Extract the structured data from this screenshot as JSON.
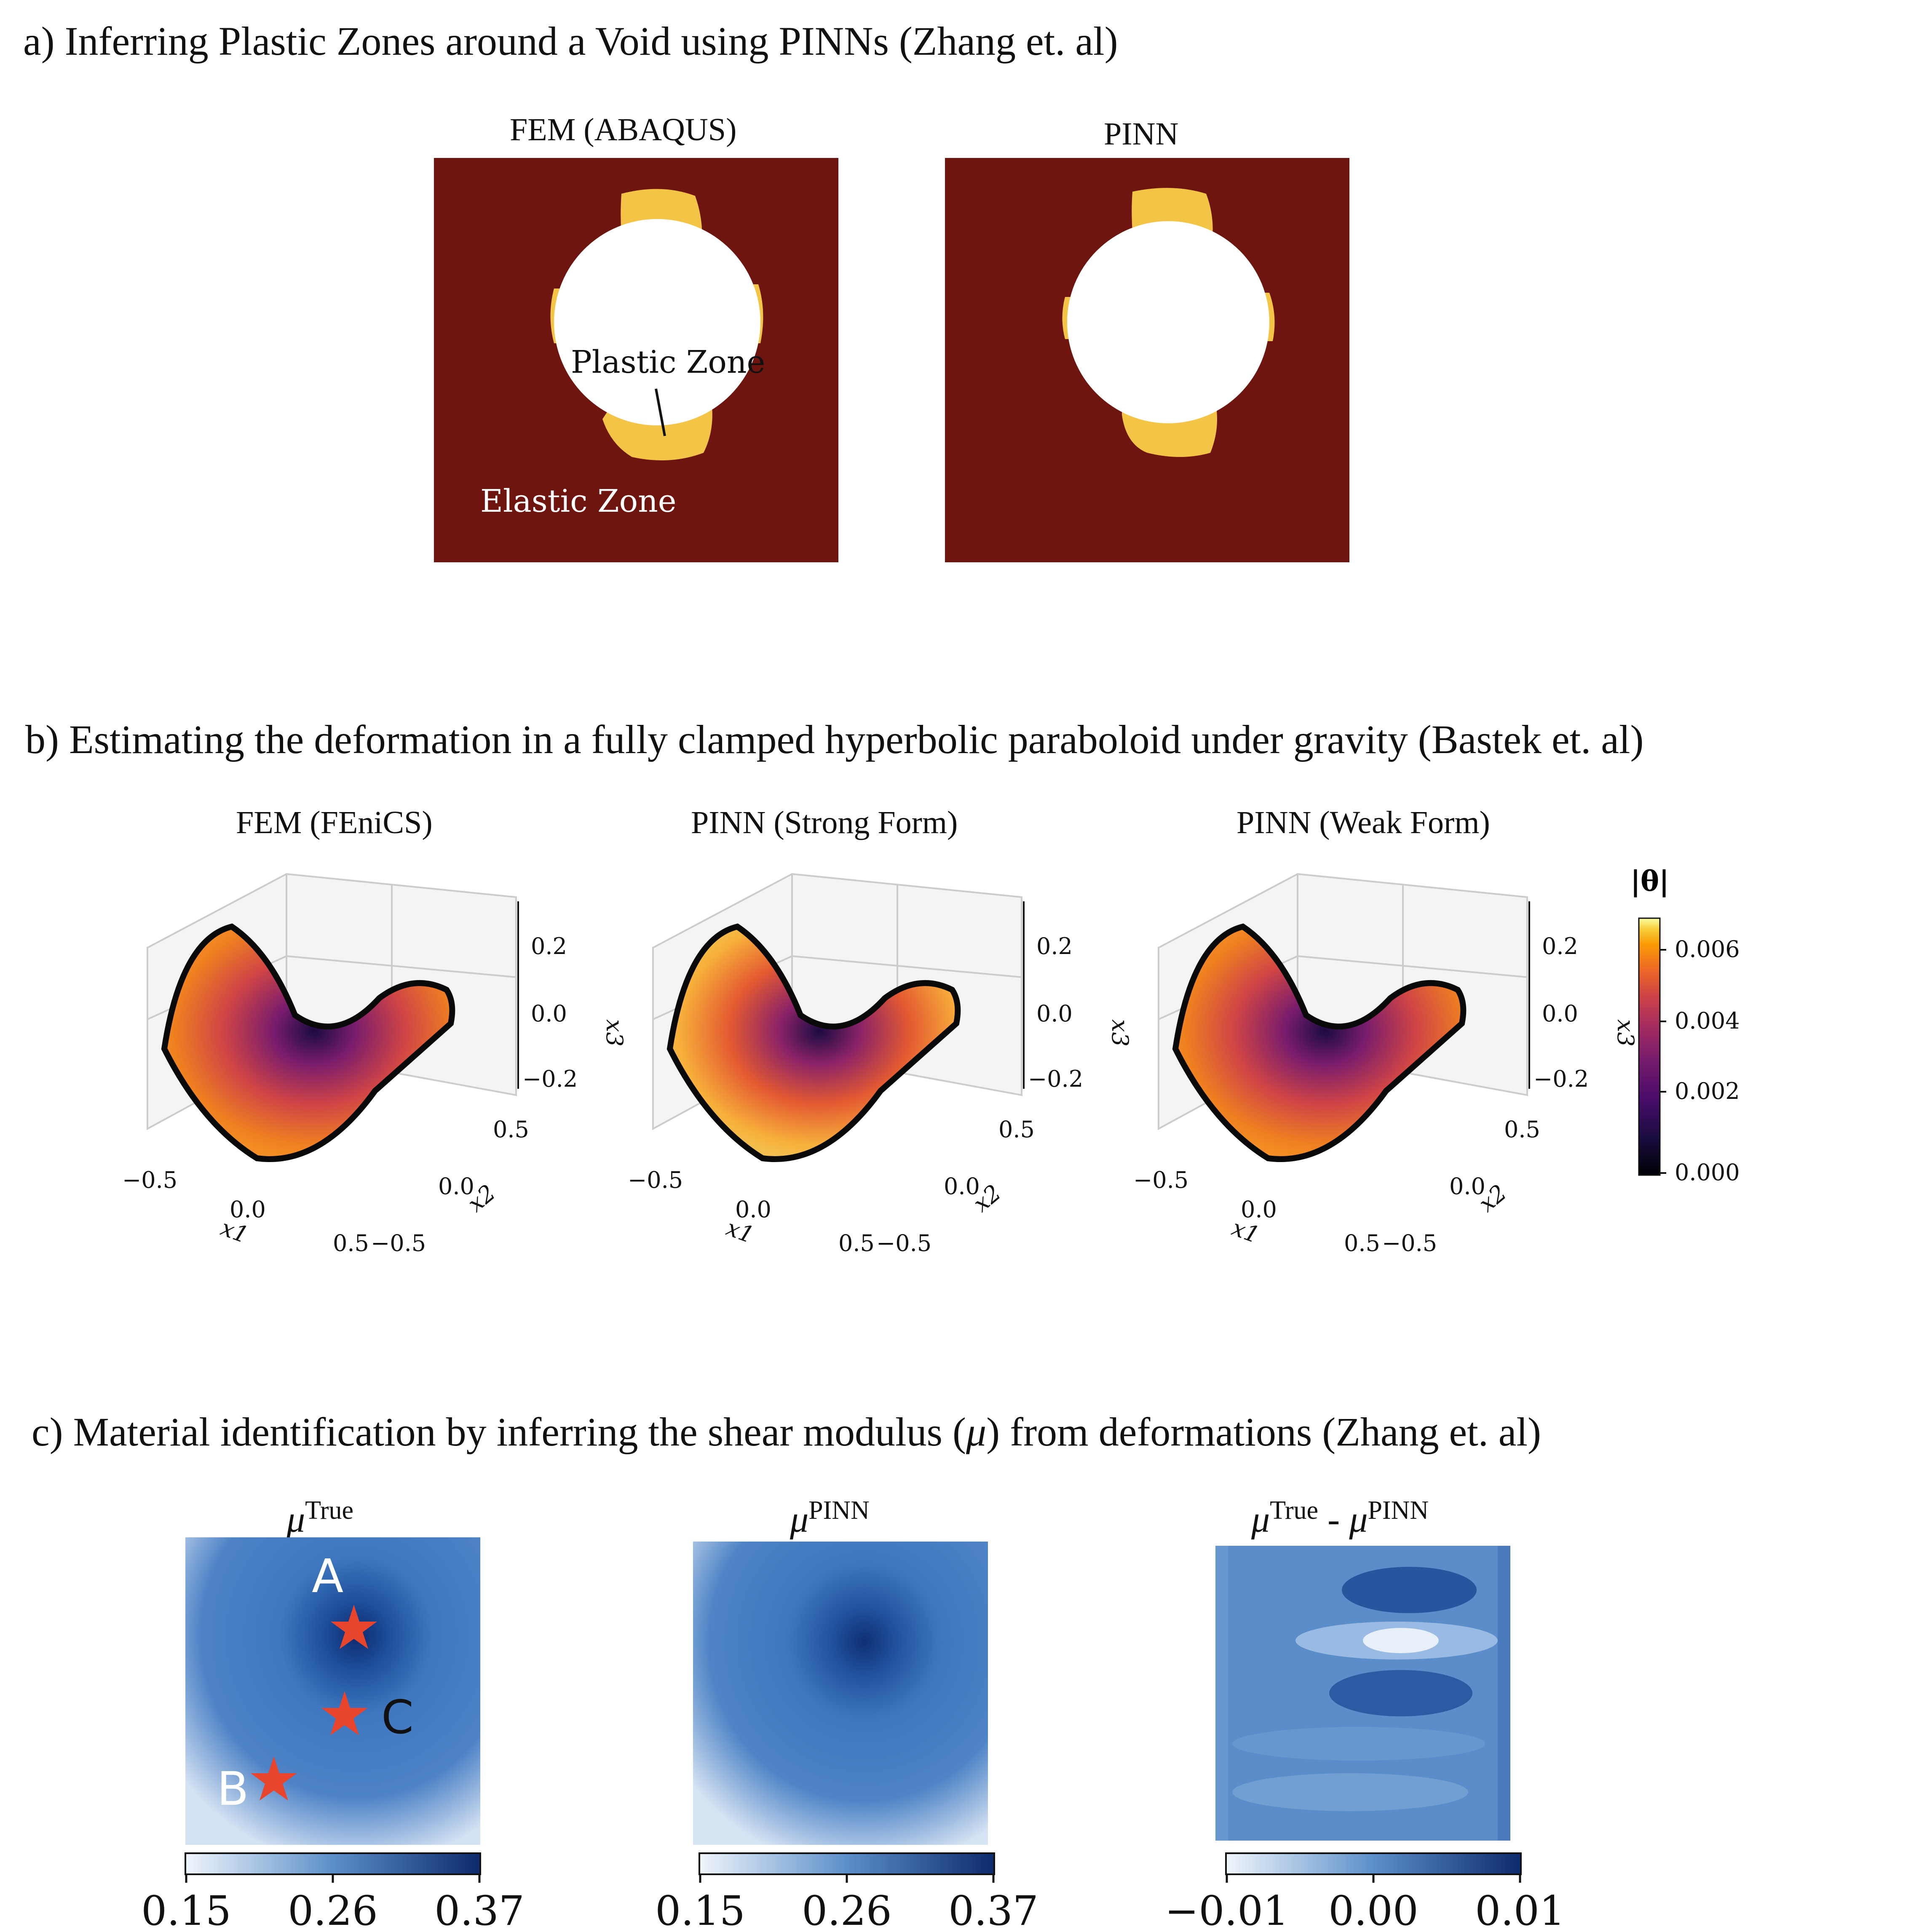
{
  "section_a": {
    "heading": "a) Inferring Plastic Zones around a Void using PINNs (Zhang et. al)",
    "panels": [
      {
        "title": "FEM (ABAQUS)",
        "label_plastic": "Plastic Zone",
        "label_elastic": "Elastic Zone"
      },
      {
        "title": "PINN"
      }
    ],
    "colors": {
      "elastic": "#6e150f",
      "plastic": "#f3c445",
      "void": "#ffffff"
    }
  },
  "section_b": {
    "heading": "b) Estimating the deformation in a fully clamped hyperbolic paraboloid under gravity (Bastek et. al)",
    "panels": [
      {
        "title": "FEM (FEniCS)"
      },
      {
        "title": "PINN (Strong Form)"
      },
      {
        "title": "PINN (Weak Form)"
      }
    ],
    "axes": {
      "x1_label": "x1",
      "x2_label": "x2",
      "x3_label": "x3",
      "x1_ticks": [
        "−0.5",
        "0.0",
        "0.5"
      ],
      "x2_ticks": [
        "−0.5",
        "0.0",
        "0.5"
      ],
      "x3_ticks": [
        "0.2",
        "0.0",
        "−0.2"
      ]
    },
    "colorbar": {
      "label": "|θ|",
      "ticks": [
        "0.006",
        "0.004",
        "0.002",
        "0.000"
      ],
      "colormap": "inferno"
    }
  },
  "section_c": {
    "heading_pre": "c) Material identification by inferring the shear modulus (",
    "heading_mu": "μ",
    "heading_post": ") from deformations (Zhang et. al)",
    "panels": [
      {
        "symbol": "μ",
        "sup": "True",
        "colorbar_ticks": [
          "0.15",
          "0.26",
          "0.37"
        ]
      },
      {
        "symbol": "μ",
        "sup": "PINN",
        "colorbar_ticks": [
          "0.15",
          "0.26",
          "0.37"
        ]
      },
      {
        "symbol": "μ",
        "sup": "True",
        "minus": "-",
        "symbol2": "μ",
        "sup2": "PINN",
        "colorbar_ticks": [
          "−0.01",
          "0.00",
          "0.01"
        ]
      }
    ],
    "markers": {
      "A": "A",
      "B": "B",
      "C": "C"
    },
    "colors": {
      "marker": "#e8452c",
      "low": "#eef3fb",
      "high": "#0d2a6e"
    }
  }
}
